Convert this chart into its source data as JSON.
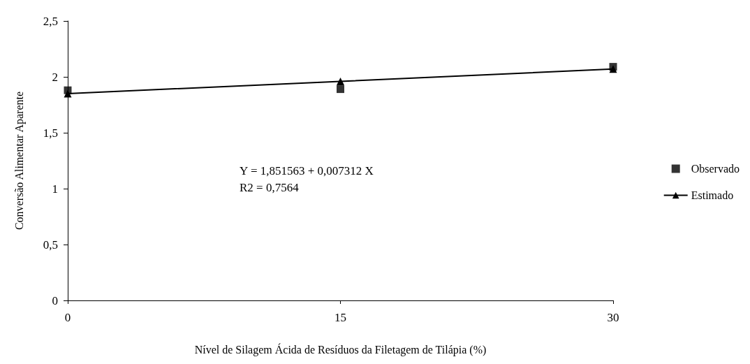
{
  "chart_data": {
    "type": "line",
    "xlabel": "Nível de Silagem Ácida de Resíduos da Filetagem de Tilápia (%)",
    "ylabel": "Conversão Alimentar Aparente",
    "x": [
      0,
      15,
      30
    ],
    "series": [
      {
        "name": "Observado",
        "type": "scatter",
        "marker": "square",
        "color": "#000000",
        "values": [
          1.88,
          1.89,
          2.09
        ]
      },
      {
        "name": "Estimado",
        "marker": "triangle",
        "line_style": "solid",
        "color": "#000000",
        "values": [
          1.85,
          1.96,
          2.07
        ]
      }
    ],
    "xlim": [
      0,
      30
    ],
    "xticks": [
      0,
      15,
      30
    ],
    "ylim": [
      0,
      2.5
    ],
    "yticks": [
      0,
      {
        "value": 0.5,
        "label": "0,5"
      },
      1,
      {
        "value": 1.5,
        "label": "1,5"
      },
      2,
      {
        "value": 2.5,
        "label": "2,5"
      }
    ],
    "annotations": [
      "Y = 1,851563 + 0,007312 X",
      "R2 = 0,7564"
    ],
    "grid": false,
    "legend": "right"
  }
}
